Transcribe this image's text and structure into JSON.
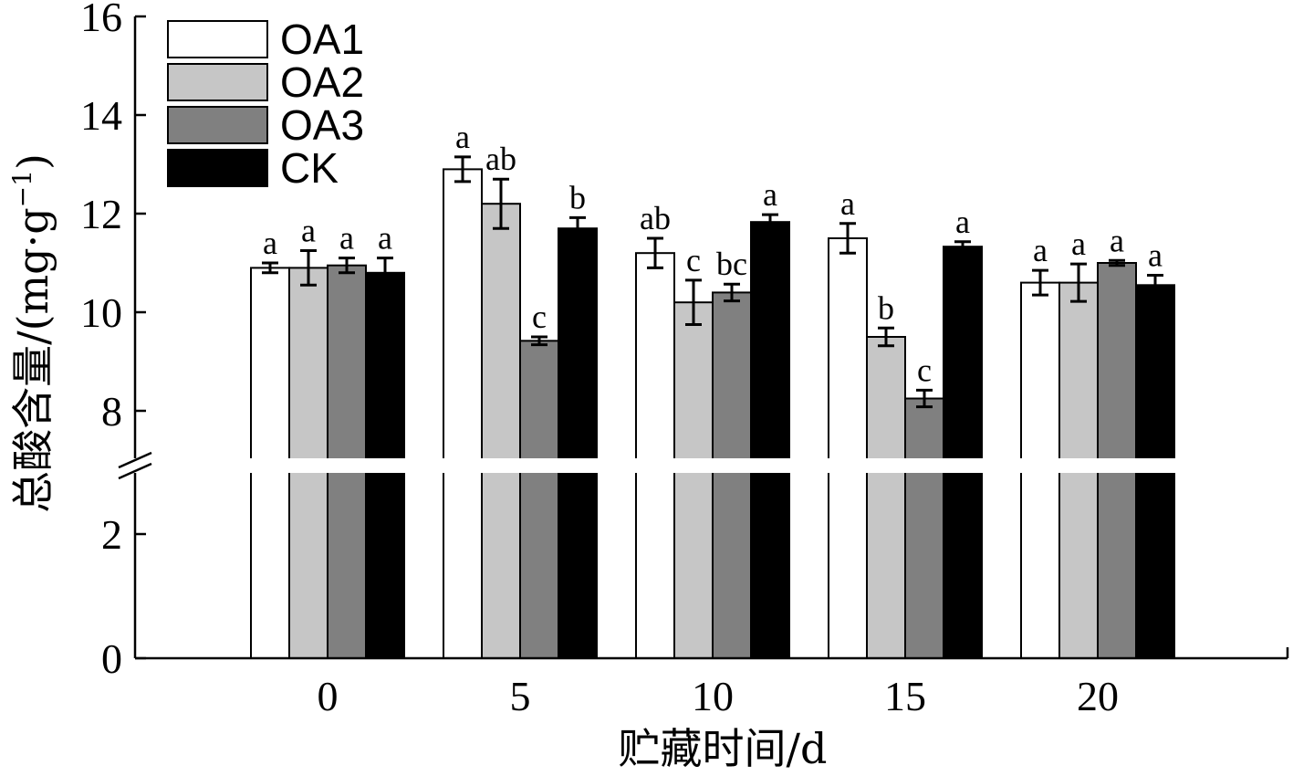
{
  "chart_data": {
    "type": "bar",
    "xlabel": "贮藏时间/d",
    "ylabel_text": "总酸含量/(mg·g",
    "ylabel_sup": "−1",
    "ylabel_close": ")",
    "categories": [
      "0",
      "5",
      "10",
      "15",
      "20"
    ],
    "yticks_lower": [
      "0",
      "2"
    ],
    "yticks_upper": [
      "8",
      "10",
      "12",
      "14",
      "16"
    ],
    "ylim": [
      0,
      16
    ],
    "y_break": [
      3,
      7.2
    ],
    "grid": false,
    "legend_position": "top-left",
    "series": [
      {
        "name": "OA1",
        "color": "#ffffff",
        "values": [
          10.9,
          12.9,
          11.2,
          11.5,
          10.6
        ],
        "errors": [
          0.1,
          0.25,
          0.3,
          0.3,
          0.25
        ],
        "letters": [
          "a",
          "a",
          "ab",
          "a",
          "a"
        ]
      },
      {
        "name": "OA2",
        "color": "#c6c6c6",
        "values": [
          10.9,
          12.2,
          10.2,
          9.5,
          10.6
        ],
        "errors": [
          0.35,
          0.5,
          0.45,
          0.18,
          0.38
        ],
        "letters": [
          "a",
          "ab",
          "c",
          "b",
          "a"
        ]
      },
      {
        "name": "OA3",
        "color": "#808080",
        "values": [
          10.95,
          9.42,
          10.4,
          8.25,
          11.0
        ],
        "errors": [
          0.15,
          0.08,
          0.17,
          0.17,
          0.05
        ],
        "letters": [
          "a",
          "c",
          "bc",
          "c",
          "a"
        ]
      },
      {
        "name": "CK",
        "color": "#000000",
        "values": [
          10.8,
          11.7,
          11.83,
          11.33,
          10.55
        ],
        "errors": [
          0.3,
          0.22,
          0.15,
          0.1,
          0.2
        ],
        "letters": [
          "a",
          "b",
          "a",
          "a",
          "a"
        ]
      }
    ]
  }
}
